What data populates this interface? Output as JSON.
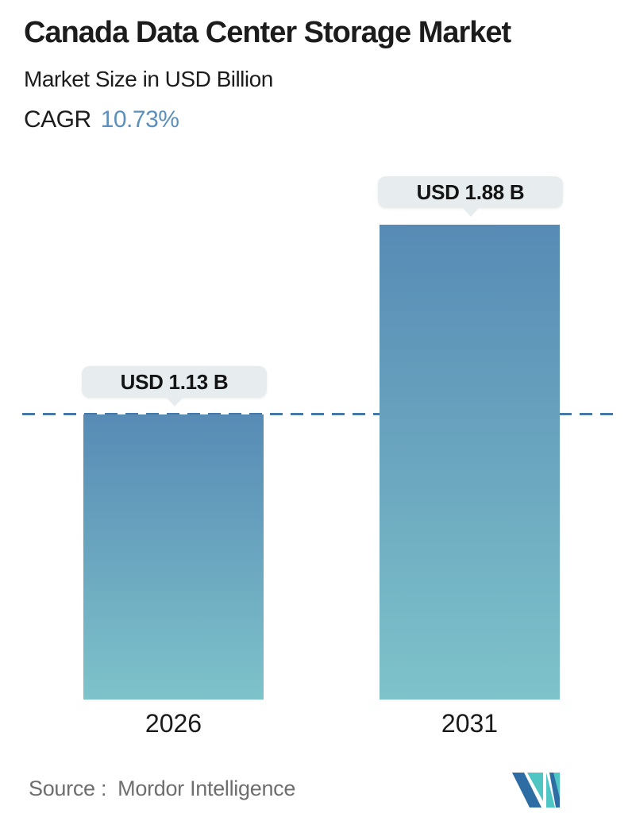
{
  "header": {
    "title": "Canada Data Center Storage Market",
    "subtitle": "Market Size in USD Billion",
    "cagr_label": "CAGR",
    "cagr_value": "10.73%"
  },
  "chart_data": {
    "type": "bar",
    "categories": [
      "2026",
      "2031"
    ],
    "values": [
      1.13,
      1.88
    ],
    "value_labels": [
      "USD 1.13 B",
      "USD 1.88 B"
    ],
    "title": "Canada Data Center Storage Market",
    "subtitle": "Market Size in USD Billion",
    "cagr": "10.73%",
    "unit": "USD Billion",
    "xlabel": "",
    "ylabel": "Market Size in USD Billion",
    "ylim": [
      0,
      2.1
    ],
    "grid": false,
    "legend": false,
    "reference_line": {
      "value": 1.13,
      "style": "dashed",
      "color": "#4679a8"
    },
    "bar_gradient": {
      "top": "#578bb5",
      "bottom": "#7ec3ca"
    }
  },
  "footer": {
    "source_label": "Source :",
    "source_value": "Mordor Intelligence",
    "logo_name": "mordor-intelligence-logo"
  },
  "colors": {
    "accent_blue": "#5b90bd",
    "dash_line": "#4679a8",
    "tooltip_bg": "#e7edef",
    "text_dark": "#1c1c1c",
    "source_gray": "#6e6e6e",
    "logo_blue": "#2e6da4",
    "logo_teal": "#4fc6c4"
  }
}
